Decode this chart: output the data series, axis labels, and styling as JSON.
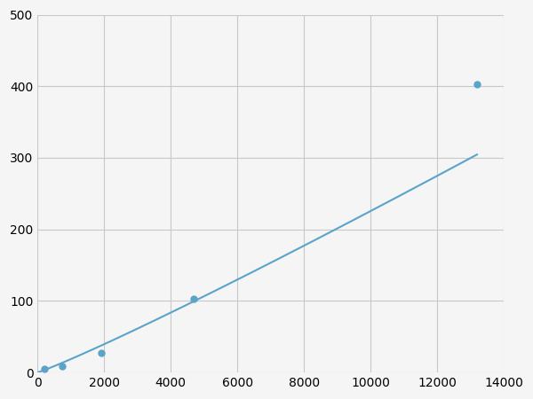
{
  "x": [
    200,
    750,
    1900,
    4700,
    13200
  ],
  "y": [
    5,
    9,
    27,
    103,
    403
  ],
  "line_color": "#5ba3c9",
  "marker_color": "#5ba3c9",
  "marker_size": 5,
  "line_width": 1.5,
  "xlim": [
    0,
    14000
  ],
  "ylim": [
    0,
    500
  ],
  "xticks": [
    0,
    2000,
    4000,
    6000,
    8000,
    10000,
    12000,
    14000
  ],
  "yticks": [
    0,
    100,
    200,
    300,
    400,
    500
  ],
  "grid_color": "#c8c8c8",
  "background_color": "#f5f5f5",
  "tick_fontsize": 10
}
